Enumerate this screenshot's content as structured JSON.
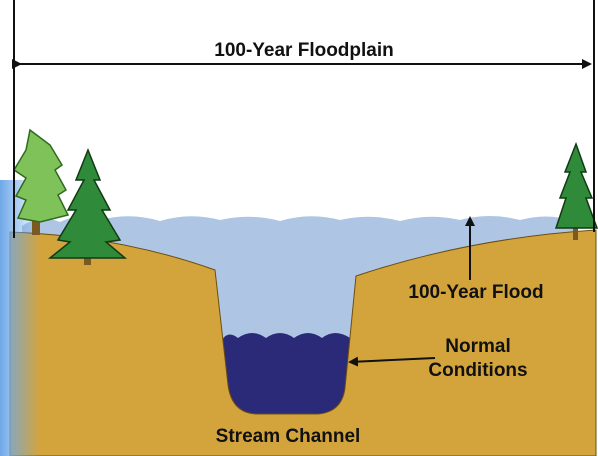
{
  "labels": {
    "floodplain": "100-Year Floodplain",
    "flood": "100-Year Flood",
    "normal": [
      "Normal",
      "Conditions"
    ],
    "channel": "Stream Channel"
  }
}
